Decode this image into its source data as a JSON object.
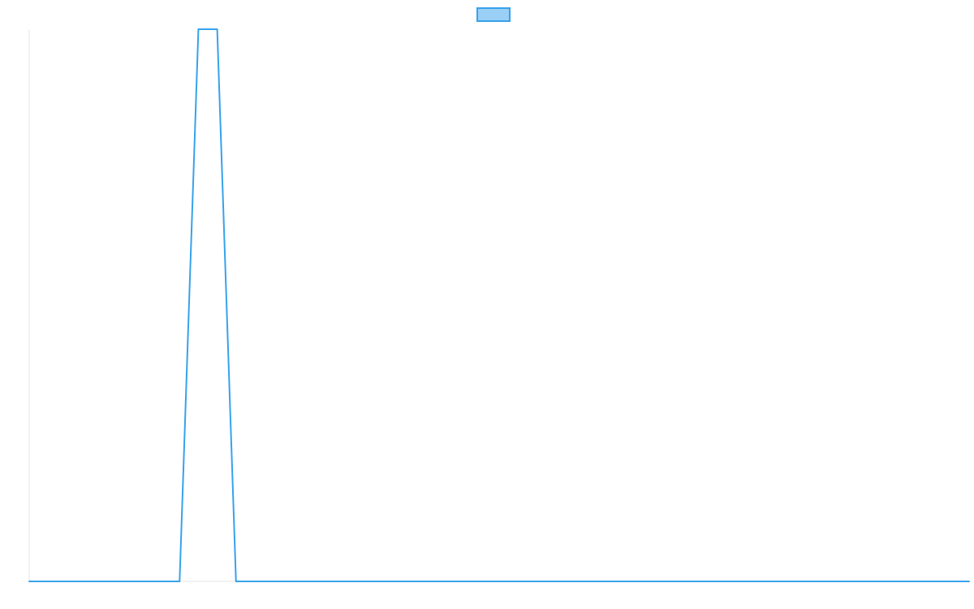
{
  "chart_data": {
    "type": "line",
    "title": "",
    "xlabel": "",
    "ylabel": "",
    "grid": false,
    "legend": {
      "position": "top-center",
      "entries": [
        {
          "name": "",
          "color": "#36a2eb",
          "fill": "#9ad0f5"
        }
      ]
    },
    "x": [
      0,
      1,
      2,
      3,
      4,
      5,
      6,
      7,
      8,
      9,
      10,
      11,
      12,
      13,
      14,
      15,
      16,
      17,
      18,
      19,
      20,
      21,
      22,
      23,
      24,
      25,
      26,
      27,
      28,
      29,
      30,
      31,
      32,
      33,
      34,
      35,
      36,
      37,
      38,
      39,
      40,
      41,
      42,
      43,
      44,
      45,
      46,
      47,
      48,
      49,
      50
    ],
    "xlim": [
      0,
      50
    ],
    "ylim": [
      0,
      1
    ],
    "series": [
      {
        "name": "",
        "color": "#36a2eb",
        "values": [
          0,
          0,
          0,
          0,
          0,
          0,
          0,
          0,
          0,
          1,
          1,
          0,
          0,
          0,
          0,
          0,
          0,
          0,
          0,
          0,
          0,
          0,
          0,
          0,
          0,
          0,
          0,
          0,
          0,
          0,
          0,
          0,
          0,
          0,
          0,
          0,
          0,
          0,
          0,
          0,
          0,
          0,
          0,
          0,
          0,
          0,
          0,
          0,
          0,
          0,
          0
        ]
      }
    ]
  }
}
